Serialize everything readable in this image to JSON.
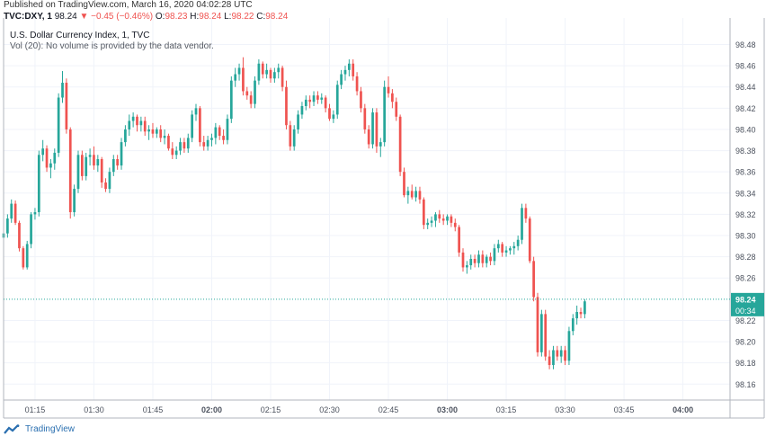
{
  "header": {
    "published": "Published on TradingView.com, March 16, 2020 04:02:28 UTC",
    "symbol": "TVC:DXY, 1",
    "last": "98.24",
    "change": "▼ −0.45 (−0.46%)",
    "o_label": "O:",
    "o_value": "98.23",
    "h_label": "H:",
    "h_value": "98.24",
    "l_label": "L:",
    "l_value": "98.22",
    "c_label": "C:",
    "c_value": "98.24"
  },
  "legend": {
    "title": "U.S. Dollar Currency Index, 1, TVC",
    "volume_note": "Vol (20): No volume is provided by the data vendor."
  },
  "price_tag": {
    "value": "98.24",
    "countdown": "00:34"
  },
  "footer": {
    "brand": "TradingView"
  },
  "colors": {
    "up": "#26a69a",
    "down": "#ef5350",
    "grid": "#f0f3fa",
    "price_line": "#26a69a"
  },
  "chart_data": {
    "type": "candlestick",
    "x_ticks": [
      "01:15",
      "01:30",
      "01:45",
      "02:00",
      "02:15",
      "02:30",
      "02:45",
      "03:00",
      "03:15",
      "03:30",
      "03:45",
      "04:00"
    ],
    "x_bold": [
      "02:00",
      "03:00",
      "04:00"
    ],
    "y_ticks": [
      "98.48",
      "98.46",
      "98.44",
      "98.42",
      "98.40",
      "98.38",
      "98.36",
      "98.34",
      "98.32",
      "98.30",
      "98.28",
      "98.26",
      "98.22",
      "98.20",
      "98.18",
      "98.16"
    ],
    "y_range": [
      98.145,
      98.505
    ],
    "time_range": [
      "01:07",
      "04:12"
    ],
    "last_price": 98.24,
    "candles": [
      {
        "t": "01:07",
        "o": 98.298,
        "h": 98.312,
        "l": 98.288,
        "c": 98.302
      },
      {
        "t": "01:08",
        "o": 98.302,
        "h": 98.32,
        "l": 98.298,
        "c": 98.316
      },
      {
        "t": "01:09",
        "o": 98.316,
        "h": 98.334,
        "l": 98.312,
        "c": 98.33
      },
      {
        "t": "01:10",
        "o": 98.33,
        "h": 98.333,
        "l": 98.31,
        "c": 98.312
      },
      {
        "t": "01:11",
        "o": 98.312,
        "h": 98.314,
        "l": 98.285,
        "c": 98.288
      },
      {
        "t": "01:12",
        "o": 98.288,
        "h": 98.29,
        "l": 98.268,
        "c": 98.27
      },
      {
        "t": "01:13",
        "o": 98.27,
        "h": 98.295,
        "l": 98.268,
        "c": 98.292
      },
      {
        "t": "01:14",
        "o": 98.292,
        "h": 98.322,
        "l": 98.288,
        "c": 98.32
      },
      {
        "t": "01:15",
        "o": 98.32,
        "h": 98.326,
        "l": 98.315,
        "c": 98.322
      },
      {
        "t": "01:16",
        "o": 98.322,
        "h": 98.38,
        "l": 98.318,
        "c": 98.376
      },
      {
        "t": "01:17",
        "o": 98.376,
        "h": 98.39,
        "l": 98.37,
        "c": 98.382
      },
      {
        "t": "01:18",
        "o": 98.382,
        "h": 98.385,
        "l": 98.36,
        "c": 98.364
      },
      {
        "t": "01:19",
        "o": 98.364,
        "h": 98.372,
        "l": 98.354,
        "c": 98.368
      },
      {
        "t": "01:20",
        "o": 98.368,
        "h": 98.382,
        "l": 98.362,
        "c": 98.378
      },
      {
        "t": "01:21",
        "o": 98.378,
        "h": 98.434,
        "l": 98.374,
        "c": 98.43
      },
      {
        "t": "01:22",
        "o": 98.43,
        "h": 98.455,
        "l": 98.425,
        "c": 98.444
      },
      {
        "t": "01:23",
        "o": 98.444,
        "h": 98.448,
        "l": 98.396,
        "c": 98.4
      },
      {
        "t": "01:24",
        "o": 98.4,
        "h": 98.402,
        "l": 98.316,
        "c": 98.322
      },
      {
        "t": "01:25",
        "o": 98.322,
        "h": 98.348,
        "l": 98.318,
        "c": 98.344
      },
      {
        "t": "01:26",
        "o": 98.344,
        "h": 98.38,
        "l": 98.34,
        "c": 98.376
      },
      {
        "t": "01:27",
        "o": 98.376,
        "h": 98.38,
        "l": 98.352,
        "c": 98.356
      },
      {
        "t": "01:28",
        "o": 98.356,
        "h": 98.378,
        "l": 98.352,
        "c": 98.374
      },
      {
        "t": "01:29",
        "o": 98.374,
        "h": 98.382,
        "l": 98.366,
        "c": 98.376
      },
      {
        "t": "01:30",
        "o": 98.376,
        "h": 98.384,
        "l": 98.362,
        "c": 98.366
      },
      {
        "t": "01:31",
        "o": 98.366,
        "h": 98.376,
        "l": 98.36,
        "c": 98.372
      },
      {
        "t": "01:32",
        "o": 98.372,
        "h": 98.374,
        "l": 98.345,
        "c": 98.35
      },
      {
        "t": "01:33",
        "o": 98.35,
        "h": 98.354,
        "l": 98.341,
        "c": 98.344
      },
      {
        "t": "01:34",
        "o": 98.344,
        "h": 98.364,
        "l": 98.34,
        "c": 98.36
      },
      {
        "t": "01:35",
        "o": 98.36,
        "h": 98.376,
        "l": 98.356,
        "c": 98.372
      },
      {
        "t": "01:36",
        "o": 98.372,
        "h": 98.376,
        "l": 98.362,
        "c": 98.366
      },
      {
        "t": "01:37",
        "o": 98.366,
        "h": 98.392,
        "l": 98.362,
        "c": 98.388
      },
      {
        "t": "01:38",
        "o": 98.388,
        "h": 98.404,
        "l": 98.384,
        "c": 98.4
      },
      {
        "t": "01:39",
        "o": 98.4,
        "h": 98.414,
        "l": 98.394,
        "c": 98.408
      },
      {
        "t": "01:40",
        "o": 98.408,
        "h": 98.416,
        "l": 98.402,
        "c": 98.412
      },
      {
        "t": "01:41",
        "o": 98.412,
        "h": 98.414,
        "l": 98.398,
        "c": 98.404
      },
      {
        "t": "01:42",
        "o": 98.404,
        "h": 98.412,
        "l": 98.398,
        "c": 98.408
      },
      {
        "t": "01:43",
        "o": 98.408,
        "h": 98.412,
        "l": 98.394,
        "c": 98.398
      },
      {
        "t": "01:44",
        "o": 98.398,
        "h": 98.404,
        "l": 98.39,
        "c": 98.4
      },
      {
        "t": "01:45",
        "o": 98.4,
        "h": 98.406,
        "l": 98.392,
        "c": 98.396
      },
      {
        "t": "01:46",
        "o": 98.396,
        "h": 98.402,
        "l": 98.392,
        "c": 98.4
      },
      {
        "t": "01:47",
        "o": 98.4,
        "h": 98.404,
        "l": 98.388,
        "c": 98.392
      },
      {
        "t": "01:48",
        "o": 98.392,
        "h": 98.4,
        "l": 98.386,
        "c": 98.394
      },
      {
        "t": "01:49",
        "o": 98.394,
        "h": 98.396,
        "l": 98.38,
        "c": 98.382
      },
      {
        "t": "01:50",
        "o": 98.382,
        "h": 98.388,
        "l": 98.372,
        "c": 98.376
      },
      {
        "t": "01:51",
        "o": 98.376,
        "h": 98.384,
        "l": 98.372,
        "c": 98.38
      },
      {
        "t": "01:52",
        "o": 98.38,
        "h": 98.392,
        "l": 98.376,
        "c": 98.388
      },
      {
        "t": "01:53",
        "o": 98.388,
        "h": 98.392,
        "l": 98.378,
        "c": 98.382
      },
      {
        "t": "01:54",
        "o": 98.382,
        "h": 98.396,
        "l": 98.378,
        "c": 98.392
      },
      {
        "t": "01:55",
        "o": 98.392,
        "h": 98.418,
        "l": 98.388,
        "c": 98.414
      },
      {
        "t": "01:56",
        "o": 98.414,
        "h": 98.424,
        "l": 98.408,
        "c": 98.42
      },
      {
        "t": "01:57",
        "o": 98.42,
        "h": 98.422,
        "l": 98.384,
        "c": 98.388
      },
      {
        "t": "01:58",
        "o": 98.388,
        "h": 98.394,
        "l": 98.38,
        "c": 98.384
      },
      {
        "t": "01:59",
        "o": 98.384,
        "h": 98.394,
        "l": 98.38,
        "c": 98.39
      },
      {
        "t": "02:00",
        "o": 98.39,
        "h": 98.396,
        "l": 98.384,
        "c": 98.392
      },
      {
        "t": "02:01",
        "o": 98.392,
        "h": 98.406,
        "l": 98.386,
        "c": 98.402
      },
      {
        "t": "02:02",
        "o": 98.402,
        "h": 98.404,
        "l": 98.39,
        "c": 98.394
      },
      {
        "t": "02:03",
        "o": 98.394,
        "h": 98.4,
        "l": 98.386,
        "c": 98.39
      },
      {
        "t": "02:04",
        "o": 98.39,
        "h": 98.414,
        "l": 98.386,
        "c": 98.41
      },
      {
        "t": "02:05",
        "o": 98.41,
        "h": 98.45,
        "l": 98.406,
        "c": 98.446
      },
      {
        "t": "02:06",
        "o": 98.446,
        "h": 98.458,
        "l": 98.44,
        "c": 98.452
      },
      {
        "t": "02:07",
        "o": 98.452,
        "h": 98.462,
        "l": 98.446,
        "c": 98.458
      },
      {
        "t": "02:08",
        "o": 98.458,
        "h": 98.468,
        "l": 98.432,
        "c": 98.436
      },
      {
        "t": "02:09",
        "o": 98.436,
        "h": 98.44,
        "l": 98.428,
        "c": 98.432
      },
      {
        "t": "02:10",
        "o": 98.432,
        "h": 98.436,
        "l": 98.42,
        "c": 98.424
      },
      {
        "t": "02:11",
        "o": 98.424,
        "h": 98.45,
        "l": 98.42,
        "c": 98.446
      },
      {
        "t": "02:12",
        "o": 98.446,
        "h": 98.466,
        "l": 98.442,
        "c": 98.462
      },
      {
        "t": "02:13",
        "o": 98.462,
        "h": 98.464,
        "l": 98.448,
        "c": 98.452
      },
      {
        "t": "02:14",
        "o": 98.452,
        "h": 98.462,
        "l": 98.448,
        "c": 98.456
      },
      {
        "t": "02:15",
        "o": 98.456,
        "h": 98.458,
        "l": 98.444,
        "c": 98.448
      },
      {
        "t": "02:16",
        "o": 98.448,
        "h": 98.458,
        "l": 98.444,
        "c": 98.454
      },
      {
        "t": "02:17",
        "o": 98.454,
        "h": 98.462,
        "l": 98.448,
        "c": 98.458
      },
      {
        "t": "02:18",
        "o": 98.458,
        "h": 98.46,
        "l": 98.436,
        "c": 98.44
      },
      {
        "t": "02:19",
        "o": 98.44,
        "h": 98.446,
        "l": 98.4,
        "c": 98.404
      },
      {
        "t": "02:20",
        "o": 98.404,
        "h": 98.408,
        "l": 98.38,
        "c": 98.384
      },
      {
        "t": "02:21",
        "o": 98.384,
        "h": 98.404,
        "l": 98.38,
        "c": 98.4
      },
      {
        "t": "02:22",
        "o": 98.4,
        "h": 98.418,
        "l": 98.396,
        "c": 98.414
      },
      {
        "t": "02:23",
        "o": 98.414,
        "h": 98.426,
        "l": 98.41,
        "c": 98.422
      },
      {
        "t": "02:24",
        "o": 98.422,
        "h": 98.432,
        "l": 98.418,
        "c": 98.428
      },
      {
        "t": "02:25",
        "o": 98.428,
        "h": 98.432,
        "l": 98.42,
        "c": 98.426
      },
      {
        "t": "02:26",
        "o": 98.426,
        "h": 98.436,
        "l": 98.422,
        "c": 98.432
      },
      {
        "t": "02:27",
        "o": 98.432,
        "h": 98.436,
        "l": 98.424,
        "c": 98.428
      },
      {
        "t": "02:28",
        "o": 98.428,
        "h": 98.434,
        "l": 98.424,
        "c": 98.43
      },
      {
        "t": "02:29",
        "o": 98.43,
        "h": 98.432,
        "l": 98.416,
        "c": 98.42
      },
      {
        "t": "02:30",
        "o": 98.42,
        "h": 98.424,
        "l": 98.408,
        "c": 98.41
      },
      {
        "t": "02:31",
        "o": 98.41,
        "h": 98.418,
        "l": 98.406,
        "c": 98.414
      },
      {
        "t": "02:32",
        "o": 98.414,
        "h": 98.446,
        "l": 98.41,
        "c": 98.442
      },
      {
        "t": "02:33",
        "o": 98.442,
        "h": 98.456,
        "l": 98.438,
        "c": 98.452
      },
      {
        "t": "02:34",
        "o": 98.452,
        "h": 98.46,
        "l": 98.446,
        "c": 98.456
      },
      {
        "t": "02:35",
        "o": 98.456,
        "h": 98.466,
        "l": 98.45,
        "c": 98.462
      },
      {
        "t": "02:36",
        "o": 98.462,
        "h": 98.466,
        "l": 98.446,
        "c": 98.45
      },
      {
        "t": "02:37",
        "o": 98.45,
        "h": 98.454,
        "l": 98.432,
        "c": 98.436
      },
      {
        "t": "02:38",
        "o": 98.436,
        "h": 98.44,
        "l": 98.416,
        "c": 98.42
      },
      {
        "t": "02:39",
        "o": 98.42,
        "h": 98.424,
        "l": 98.396,
        "c": 98.4
      },
      {
        "t": "02:40",
        "o": 98.4,
        "h": 98.404,
        "l": 98.382,
        "c": 98.386
      },
      {
        "t": "02:41",
        "o": 98.386,
        "h": 98.42,
        "l": 98.382,
        "c": 98.416
      },
      {
        "t": "02:42",
        "o": 98.416,
        "h": 98.42,
        "l": 98.378,
        "c": 98.384
      },
      {
        "t": "02:43",
        "o": 98.384,
        "h": 98.392,
        "l": 98.374,
        "c": 98.388
      },
      {
        "t": "02:44",
        "o": 98.388,
        "h": 98.446,
        "l": 98.384,
        "c": 98.44
      },
      {
        "t": "02:45",
        "o": 98.44,
        "h": 98.45,
        "l": 98.43,
        "c": 98.434
      },
      {
        "t": "02:46",
        "o": 98.434,
        "h": 98.438,
        "l": 98.42,
        "c": 98.426
      },
      {
        "t": "02:47",
        "o": 98.426,
        "h": 98.43,
        "l": 98.408,
        "c": 98.412
      },
      {
        "t": "02:48",
        "o": 98.412,
        "h": 98.414,
        "l": 98.356,
        "c": 98.36
      },
      {
        "t": "02:49",
        "o": 98.36,
        "h": 98.364,
        "l": 98.336,
        "c": 98.338
      },
      {
        "t": "02:50",
        "o": 98.338,
        "h": 98.346,
        "l": 98.33,
        "c": 98.342
      },
      {
        "t": "02:51",
        "o": 98.342,
        "h": 98.348,
        "l": 98.334,
        "c": 98.336
      },
      {
        "t": "02:52",
        "o": 98.336,
        "h": 98.346,
        "l": 98.332,
        "c": 98.342
      },
      {
        "t": "02:53",
        "o": 98.342,
        "h": 98.346,
        "l": 98.33,
        "c": 98.334
      },
      {
        "t": "02:54",
        "o": 98.334,
        "h": 98.336,
        "l": 98.306,
        "c": 98.31
      },
      {
        "t": "02:55",
        "o": 98.31,
        "h": 98.316,
        "l": 98.306,
        "c": 98.312
      },
      {
        "t": "02:56",
        "o": 98.312,
        "h": 98.318,
        "l": 98.308,
        "c": 98.314
      },
      {
        "t": "02:57",
        "o": 98.314,
        "h": 98.322,
        "l": 98.308,
        "c": 98.32
      },
      {
        "t": "02:58",
        "o": 98.32,
        "h": 98.324,
        "l": 98.312,
        "c": 98.316
      },
      {
        "t": "02:59",
        "o": 98.316,
        "h": 98.32,
        "l": 98.31,
        "c": 98.314
      },
      {
        "t": "03:00",
        "o": 98.314,
        "h": 98.32,
        "l": 98.31,
        "c": 98.318
      },
      {
        "t": "03:01",
        "o": 98.318,
        "h": 98.32,
        "l": 98.308,
        "c": 98.312
      },
      {
        "t": "03:02",
        "o": 98.312,
        "h": 98.316,
        "l": 98.304,
        "c": 98.308
      },
      {
        "t": "03:03",
        "o": 98.308,
        "h": 98.31,
        "l": 98.28,
        "c": 98.284
      },
      {
        "t": "03:04",
        "o": 98.284,
        "h": 98.288,
        "l": 98.266,
        "c": 98.27
      },
      {
        "t": "03:05",
        "o": 98.27,
        "h": 98.276,
        "l": 98.264,
        "c": 98.272
      },
      {
        "t": "03:06",
        "o": 98.272,
        "h": 98.282,
        "l": 98.268,
        "c": 98.278
      },
      {
        "t": "03:07",
        "o": 98.278,
        "h": 98.282,
        "l": 98.27,
        "c": 98.274
      },
      {
        "t": "03:08",
        "o": 98.274,
        "h": 98.286,
        "l": 98.27,
        "c": 98.282
      },
      {
        "t": "03:09",
        "o": 98.282,
        "h": 98.286,
        "l": 98.27,
        "c": 98.274
      },
      {
        "t": "03:10",
        "o": 98.274,
        "h": 98.282,
        "l": 98.27,
        "c": 98.28
      },
      {
        "t": "03:11",
        "o": 98.28,
        "h": 98.284,
        "l": 98.272,
        "c": 98.276
      },
      {
        "t": "03:12",
        "o": 98.276,
        "h": 98.292,
        "l": 98.272,
        "c": 98.288
      },
      {
        "t": "03:13",
        "o": 98.288,
        "h": 98.296,
        "l": 98.284,
        "c": 98.292
      },
      {
        "t": "03:14",
        "o": 98.292,
        "h": 98.294,
        "l": 98.28,
        "c": 98.284
      },
      {
        "t": "03:15",
        "o": 98.284,
        "h": 98.29,
        "l": 98.28,
        "c": 98.286
      },
      {
        "t": "03:16",
        "o": 98.286,
        "h": 98.29,
        "l": 98.282,
        "c": 98.288
      },
      {
        "t": "03:17",
        "o": 98.288,
        "h": 98.294,
        "l": 98.282,
        "c": 98.29
      },
      {
        "t": "03:18",
        "o": 98.29,
        "h": 98.3,
        "l": 98.286,
        "c": 98.296
      },
      {
        "t": "03:19",
        "o": 98.296,
        "h": 98.33,
        "l": 98.292,
        "c": 98.326
      },
      {
        "t": "03:20",
        "o": 98.326,
        "h": 98.33,
        "l": 98.312,
        "c": 98.316
      },
      {
        "t": "03:21",
        "o": 98.316,
        "h": 98.318,
        "l": 98.274,
        "c": 98.276
      },
      {
        "t": "03:22",
        "o": 98.276,
        "h": 98.28,
        "l": 98.238,
        "c": 98.242
      },
      {
        "t": "03:23",
        "o": 98.242,
        "h": 98.246,
        "l": 98.186,
        "c": 98.19
      },
      {
        "t": "03:24",
        "o": 98.19,
        "h": 98.23,
        "l": 98.186,
        "c": 98.226
      },
      {
        "t": "03:25",
        "o": 98.226,
        "h": 98.23,
        "l": 98.182,
        "c": 98.186
      },
      {
        "t": "03:26",
        "o": 98.186,
        "h": 98.192,
        "l": 98.174,
        "c": 98.178
      },
      {
        "t": "03:27",
        "o": 98.178,
        "h": 98.196,
        "l": 98.174,
        "c": 98.192
      },
      {
        "t": "03:28",
        "o": 98.192,
        "h": 98.196,
        "l": 98.182,
        "c": 98.186
      },
      {
        "t": "03:29",
        "o": 98.186,
        "h": 98.196,
        "l": 98.18,
        "c": 98.192
      },
      {
        "t": "03:30",
        "o": 98.192,
        "h": 98.196,
        "l": 98.178,
        "c": 98.182
      },
      {
        "t": "03:31",
        "o": 98.182,
        "h": 98.214,
        "l": 98.178,
        "c": 98.21
      },
      {
        "t": "03:32",
        "o": 98.21,
        "h": 98.226,
        "l": 98.206,
        "c": 98.222
      },
      {
        "t": "03:33",
        "o": 98.222,
        "h": 98.234,
        "l": 98.216,
        "c": 98.228
      },
      {
        "t": "03:34",
        "o": 98.228,
        "h": 98.232,
        "l": 98.222,
        "c": 98.226
      },
      {
        "t": "03:35",
        "o": 98.226,
        "h": 98.24,
        "l": 98.222,
        "c": 98.238
      }
    ]
  }
}
